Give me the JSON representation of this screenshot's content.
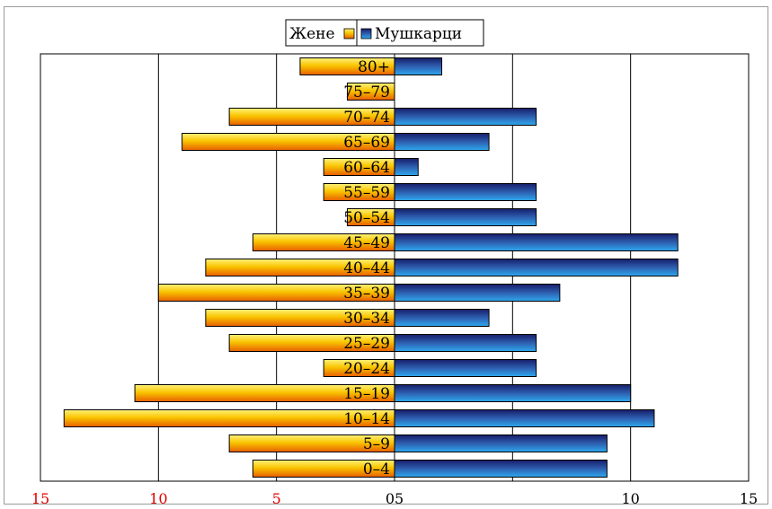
{
  "chart_data": {
    "type": "bar",
    "orientation": "horizontal",
    "layout": "population-pyramid",
    "categories": [
      "0–4",
      "5–9",
      "10–14",
      "15–19",
      "20–24",
      "25–29",
      "30–34",
      "35–39",
      "40–44",
      "45–49",
      "50–54",
      "55–59",
      "60–64",
      "65–69",
      "70–74",
      "75–79",
      "80+"
    ],
    "series": [
      {
        "name": "Жене",
        "side": "left",
        "color": "#f7c600",
        "values": [
          6,
          7,
          14,
          11,
          3,
          7,
          8,
          10,
          8,
          6,
          2,
          3,
          3,
          9,
          7,
          2,
          4
        ]
      },
      {
        "name": "Мушкарци",
        "side": "right",
        "color": "#2a6fb8",
        "values": [
          9,
          9,
          11,
          10,
          6,
          6,
          4,
          7,
          12,
          12,
          6,
          6,
          1,
          4,
          6,
          0,
          2
        ]
      }
    ],
    "xlim": [
      -15,
      15
    ],
    "x_ticks": [
      -15,
      -10,
      -5,
      0,
      5,
      10,
      15
    ],
    "x_tick_labels_left": [
      "15",
      "10",
      "5"
    ],
    "x_tick_labels_right": [
      "05",
      "10",
      "15"
    ],
    "left_tick_color": "#e00000",
    "right_tick_color": "#000000",
    "legend_position": "top-center",
    "grid": "vertical-major",
    "title": "",
    "xlabel": "",
    "ylabel": ""
  }
}
